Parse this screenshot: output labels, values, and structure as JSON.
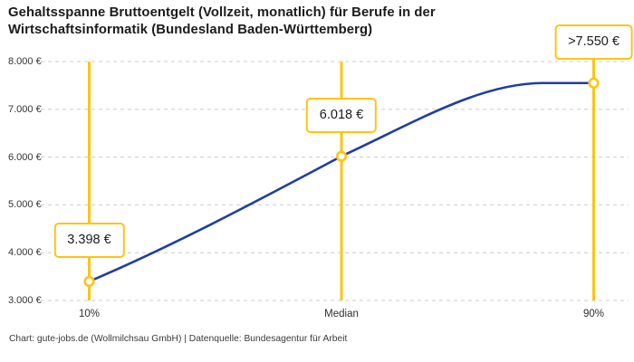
{
  "title": {
    "lines": [
      "Gehaltsspanne Bruttoentgelt (Vollzeit, monatlich) für Berufe in der",
      "Wirtschaftsinformatik (Bundesland Baden-Württemberg)"
    ]
  },
  "footer": {
    "text": "Chart: gute-jobs.de (Wollmilchsau GmbH) | Datenquelle: Bundesagentur für Arbeit"
  },
  "chart_data": {
    "type": "line",
    "title": "Gehaltsspanne Bruttoentgelt (Vollzeit, monatlich) für Berufe in der Wirtschaftsinformatik (Bundesland Baden-Württemberg)",
    "x_percentiles": [
      10,
      50,
      90
    ],
    "categories": [
      "10%",
      "Median",
      "90%"
    ],
    "values": [
      3398,
      6018,
      7550
    ],
    "value_labels": [
      "3.398 €",
      "6.018 €",
      ">7.550 €"
    ],
    "ylim": [
      3000,
      8000
    ],
    "ytick_values": [
      3000,
      4000,
      5000,
      6000,
      7000,
      8000
    ],
    "ytick_labels": [
      "3.000 €",
      "4.000 €",
      "5.000 €",
      "6.000 €",
      "7.000 €",
      "8.000 €"
    ],
    "grid": "dashed-horizontal",
    "legend": "none",
    "colors": {
      "line": "#1F3DA4",
      "accent": "#FDC413",
      "gridline": "#CCCCCC",
      "marker_fill": "#FFFFFF",
      "text": "#1B1B1B"
    }
  }
}
